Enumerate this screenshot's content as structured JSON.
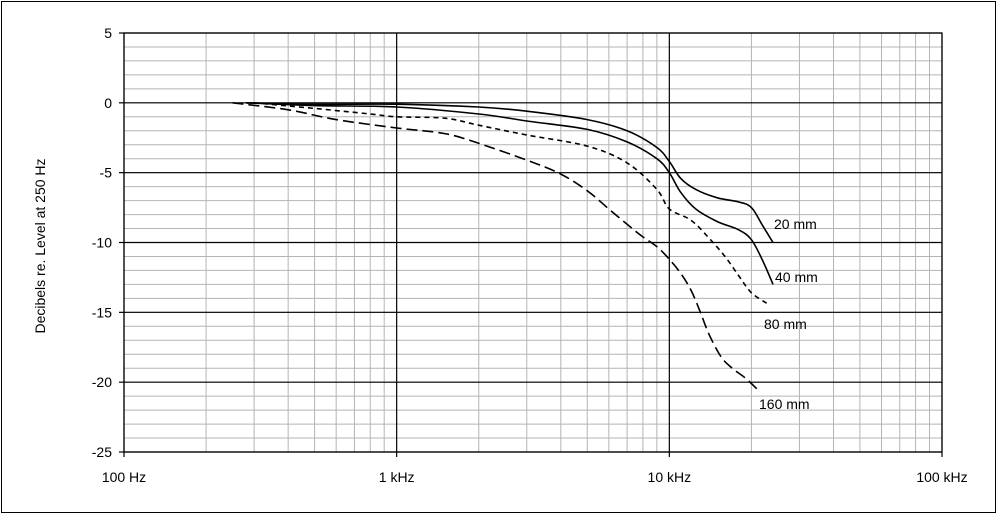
{
  "chart_data": {
    "type": "line",
    "title": "",
    "xlabel": "",
    "ylabel": "Decibels re. Level at 250 Hz",
    "x_scale": "log",
    "xlim": [
      100,
      100000
    ],
    "ylim": [
      -25,
      5
    ],
    "grid": true,
    "legend": "none",
    "x_ticks": [
      {
        "value": 100,
        "label": "100 Hz"
      },
      {
        "value": 1000,
        "label": "1 kHz"
      },
      {
        "value": 10000,
        "label": "10 kHz"
      },
      {
        "value": 100000,
        "label": "100 kHz"
      }
    ],
    "y_ticks": [
      {
        "value": 5,
        "label": "5"
      },
      {
        "value": 0,
        "label": "0"
      },
      {
        "value": -5,
        "label": "-5"
      },
      {
        "value": -10,
        "label": "-10"
      },
      {
        "value": -15,
        "label": "-15"
      },
      {
        "value": -20,
        "label": "-20"
      },
      {
        "value": -25,
        "label": "-25"
      }
    ],
    "series": [
      {
        "name": "20 mm",
        "label": "20 mm",
        "dash": "",
        "points": [
          [
            280,
            0
          ],
          [
            500,
            -0.1
          ],
          [
            1000,
            -0.1
          ],
          [
            2000,
            -0.3
          ],
          [
            3000,
            -0.6
          ],
          [
            5000,
            -1.2
          ],
          [
            7000,
            -2.0
          ],
          [
            9000,
            -3.2
          ],
          [
            10000,
            -4.2
          ],
          [
            11000,
            -5.4
          ],
          [
            12500,
            -6.2
          ],
          [
            15000,
            -6.8
          ],
          [
            18000,
            -7.1
          ],
          [
            20000,
            -7.5
          ],
          [
            22000,
            -8.8
          ],
          [
            24000,
            -10.0
          ]
        ]
      },
      {
        "name": "40 mm",
        "label": "40 mm",
        "dash": "",
        "points": [
          [
            280,
            0
          ],
          [
            500,
            -0.2
          ],
          [
            1000,
            -0.3
          ],
          [
            2000,
            -0.8
          ],
          [
            3000,
            -1.3
          ],
          [
            5000,
            -1.9
          ],
          [
            7000,
            -2.8
          ],
          [
            9000,
            -4.0
          ],
          [
            10000,
            -5.0
          ],
          [
            11000,
            -6.4
          ],
          [
            12500,
            -7.6
          ],
          [
            15000,
            -8.5
          ],
          [
            18000,
            -9.1
          ],
          [
            20000,
            -9.8
          ],
          [
            22000,
            -11.3
          ],
          [
            24000,
            -13.0
          ]
        ]
      },
      {
        "name": "80 mm",
        "label": "80 mm",
        "dash": "5 4",
        "points": [
          [
            300,
            0
          ],
          [
            500,
            -0.4
          ],
          [
            800,
            -0.8
          ],
          [
            1000,
            -1.0
          ],
          [
            1500,
            -1.1
          ],
          [
            2000,
            -1.6
          ],
          [
            3000,
            -2.3
          ],
          [
            5000,
            -3.1
          ],
          [
            7000,
            -4.3
          ],
          [
            9000,
            -6.2
          ],
          [
            10000,
            -7.6
          ],
          [
            12000,
            -8.4
          ],
          [
            14000,
            -9.7
          ],
          [
            16000,
            -11.0
          ],
          [
            18000,
            -12.4
          ],
          [
            20000,
            -13.6
          ],
          [
            23000,
            -14.4
          ]
        ]
      },
      {
        "name": "160 mm",
        "label": "160 mm",
        "dash": "11 5",
        "points": [
          [
            250,
            0
          ],
          [
            400,
            -0.5
          ],
          [
            600,
            -1.2
          ],
          [
            1000,
            -1.8
          ],
          [
            1500,
            -2.2
          ],
          [
            2000,
            -2.9
          ],
          [
            3000,
            -4.1
          ],
          [
            4000,
            -5.1
          ],
          [
            5000,
            -6.3
          ],
          [
            6000,
            -7.6
          ],
          [
            7000,
            -8.7
          ],
          [
            8000,
            -9.6
          ],
          [
            9000,
            -10.3
          ],
          [
            10000,
            -11.2
          ],
          [
            11000,
            -12.2
          ],
          [
            12000,
            -13.4
          ],
          [
            13000,
            -15.0
          ],
          [
            14000,
            -16.6
          ],
          [
            15500,
            -18.2
          ],
          [
            17000,
            -19.0
          ],
          [
            19000,
            -19.7
          ],
          [
            21000,
            -20.5
          ]
        ]
      }
    ]
  }
}
